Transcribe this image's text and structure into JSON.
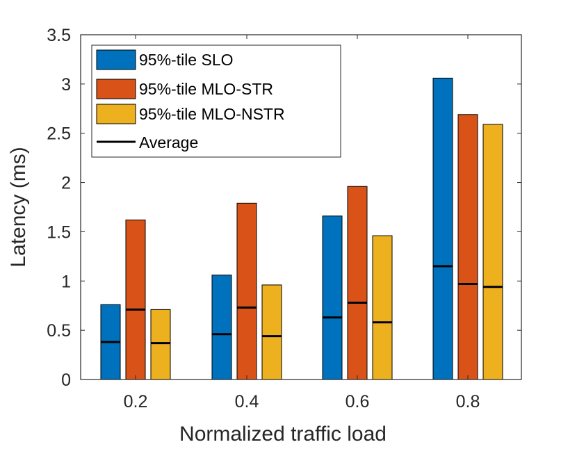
{
  "chart_data": {
    "type": "bar",
    "xlabel": "Normalized traffic load",
    "ylabel": "Latency (ms)",
    "categories": [
      "0.2",
      "0.4",
      "0.6",
      "0.8"
    ],
    "ylim": [
      0,
      3.5
    ],
    "yticks": [
      0,
      0.5,
      1,
      1.5,
      2,
      2.5,
      3,
      3.5
    ],
    "ytick_labels": [
      "0",
      "0.5",
      "1",
      "1.5",
      "2",
      "2.5",
      "3",
      "3.5"
    ],
    "series": [
      {
        "name": "95%-tile SLO",
        "color": "#0072BD",
        "values": [
          0.76,
          1.06,
          1.66,
          3.06
        ],
        "averages": [
          0.38,
          0.46,
          0.63,
          1.15
        ]
      },
      {
        "name": "95%-tile MLO-STR",
        "color": "#D95319",
        "values": [
          1.62,
          1.79,
          1.96,
          2.69
        ],
        "averages": [
          0.71,
          0.73,
          0.78,
          0.97
        ]
      },
      {
        "name": "95%-tile MLO-NSTR",
        "color": "#EDB120",
        "values": [
          0.71,
          0.96,
          1.46,
          2.59
        ],
        "averages": [
          0.37,
          0.44,
          0.58,
          0.94
        ]
      }
    ],
    "average_label": "Average",
    "legend_position": "top-left",
    "grid": false
  }
}
